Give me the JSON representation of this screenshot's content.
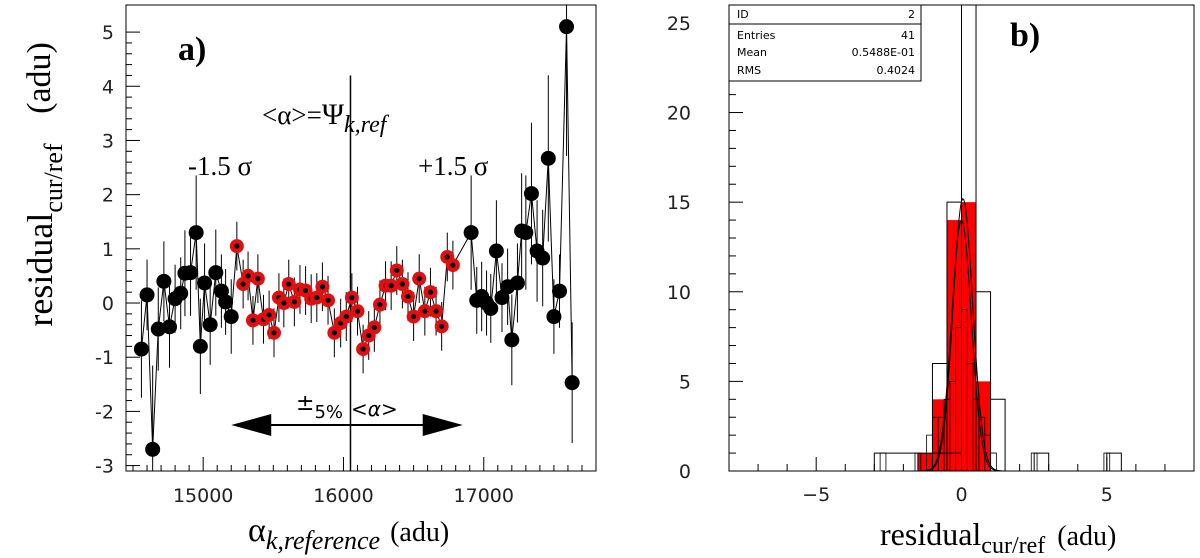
{
  "chart_data": [
    {
      "type": "scatter",
      "panel_label": "a)",
      "xlabel_main": "α",
      "xlabel_sub": "k,reference",
      "xlabel_unit": "(adu)",
      "ylabel_main": "residual",
      "ylabel_sub": "cur/ref",
      "ylabel_unit": "(adu)",
      "xlim": [
        14450,
        17800
      ],
      "ylim": [
        -3.1,
        5.5
      ],
      "xticks": [
        15000,
        16000,
        17000
      ],
      "yticks": [
        -3,
        -2,
        -1,
        0,
        1,
        2,
        3,
        4,
        5
      ],
      "vline_x": 16050,
      "annot_center_prefix": "<α>=",
      "annot_center_psi": "Ψ",
      "annot_center_sub": "k,ref",
      "annot_left": "-1.5 σ",
      "annot_right": "+1.5 σ",
      "arrow_range": [
        15200,
        16850
      ],
      "arrow_pm": "±",
      "arrow_label_pct": "5%",
      "arrow_label_alpha": "<α>",
      "outer_points": {
        "color": "#000000",
        "points": [
          [
            14560,
            -0.85
          ],
          [
            14600,
            0.15
          ],
          [
            14640,
            -2.7
          ],
          [
            14680,
            -0.48
          ],
          [
            14720,
            0.4
          ],
          [
            14760,
            -0.44
          ],
          [
            14800,
            0.08
          ],
          [
            14840,
            0.18
          ],
          [
            14870,
            0.55
          ],
          [
            14910,
            0.56
          ],
          [
            14950,
            1.3
          ],
          [
            14980,
            -0.8
          ],
          [
            15010,
            0.37
          ],
          [
            15050,
            -0.4
          ],
          [
            15090,
            0.56
          ],
          [
            15130,
            0.22
          ],
          [
            15160,
            0.02
          ],
          [
            15200,
            -0.25
          ],
          [
            16910,
            1.3
          ],
          [
            16950,
            0.05
          ],
          [
            16985,
            0.12
          ],
          [
            17020,
            0.0
          ],
          [
            17050,
            -0.1
          ],
          [
            17090,
            0.96
          ],
          [
            17130,
            0.1
          ],
          [
            17170,
            0.3
          ],
          [
            17200,
            -0.68
          ],
          [
            17240,
            0.37
          ],
          [
            17270,
            1.33
          ],
          [
            17300,
            1.3
          ],
          [
            17340,
            2.02
          ],
          [
            17380,
            0.96
          ],
          [
            17420,
            0.83
          ],
          [
            17460,
            2.67
          ],
          [
            17500,
            -0.25
          ],
          [
            17540,
            0.22
          ],
          [
            17590,
            5.1
          ],
          [
            17630,
            -1.47
          ]
        ]
      },
      "inner_points": {
        "color": "#e01010",
        "points": [
          [
            15240,
            1.05
          ],
          [
            15285,
            0.35
          ],
          [
            15320,
            0.5
          ],
          [
            15355,
            -0.32
          ],
          [
            15390,
            0.45
          ],
          [
            15430,
            -0.3
          ],
          [
            15470,
            -0.22
          ],
          [
            15505,
            -0.55
          ],
          [
            15540,
            0.1
          ],
          [
            15575,
            0.0
          ],
          [
            15610,
            0.35
          ],
          [
            15650,
            0.02
          ],
          [
            15690,
            0.25
          ],
          [
            15730,
            0.23
          ],
          [
            15770,
            0.08
          ],
          [
            15810,
            0.1
          ],
          [
            15850,
            0.3
          ],
          [
            15890,
            0.05
          ],
          [
            15935,
            -0.55
          ],
          [
            15980,
            -0.37
          ],
          [
            16020,
            -0.25
          ],
          [
            16060,
            0.1
          ],
          [
            16100,
            -0.15
          ],
          [
            16140,
            -0.85
          ],
          [
            16180,
            -0.6
          ],
          [
            16220,
            -0.45
          ],
          [
            16260,
            -0.03
          ],
          [
            16300,
            0.32
          ],
          [
            16340,
            0.32
          ],
          [
            16380,
            0.6
          ],
          [
            16420,
            0.35
          ],
          [
            16460,
            0.12
          ],
          [
            16500,
            -0.25
          ],
          [
            16540,
            0.45
          ],
          [
            16580,
            -0.15
          ],
          [
            16620,
            0.2
          ],
          [
            16660,
            -0.15
          ],
          [
            16700,
            -0.43
          ],
          [
            16740,
            0.85
          ],
          [
            16780,
            0.7
          ]
        ]
      }
    },
    {
      "type": "histogram",
      "panel_label": "b)",
      "xlabel_main": "residual",
      "xlabel_sub": "cur/ref",
      "xlabel_unit": "(adu)",
      "xlim": [
        -8,
        8
      ],
      "ylim": [
        0,
        26
      ],
      "xticks": [
        -5,
        0,
        5
      ],
      "yticks": [
        0,
        5,
        10,
        15,
        20,
        25
      ],
      "bin_width": 0.5,
      "total_histogram": {
        "outline": "#000000",
        "bins": [
          [
            -3,
            0,
            1
          ],
          [
            -1.5,
            -1,
            1
          ],
          [
            -1,
            -0.5,
            6
          ],
          [
            -0.5,
            0,
            15
          ],
          [
            0,
            0.5,
            26
          ],
          [
            0.5,
            1,
            10
          ],
          [
            1,
            1.5,
            4
          ],
          [
            2.5,
            3,
            1
          ],
          [
            5,
            5.5,
            1
          ]
        ]
      },
      "inner_histogram": {
        "fill": "#ff0000",
        "bins": [
          [
            -1.5,
            -1,
            1
          ],
          [
            -1,
            -0.5,
            4
          ],
          [
            -0.5,
            0,
            14
          ],
          [
            0,
            0.5,
            15
          ],
          [
            0.5,
            1,
            5
          ]
        ]
      },
      "fine_histogram": {
        "bin_width": 0.2,
        "bins": [
          [
            -2.8,
            -2.6,
            1
          ],
          [
            -1.6,
            -1.4,
            1
          ],
          [
            -1.2,
            -1.0,
            2
          ],
          [
            -1.0,
            -0.8,
            3
          ],
          [
            -0.8,
            -0.6,
            3
          ],
          [
            -0.6,
            -0.4,
            4
          ],
          [
            -0.4,
            -0.2,
            5
          ],
          [
            -0.2,
            0.0,
            8
          ],
          [
            0.0,
            0.2,
            9
          ],
          [
            0.2,
            0.4,
            6
          ],
          [
            0.4,
            0.6,
            4
          ],
          [
            0.6,
            0.8,
            3
          ],
          [
            0.8,
            1.0,
            2
          ],
          [
            1.0,
            1.2,
            1
          ],
          [
            2.4,
            2.6,
            1
          ],
          [
            4.9,
            5.1,
            1
          ]
        ]
      },
      "gauss_fits": [
        {
          "amp": 15.2,
          "mean": 0.05,
          "sigma": 0.34
        },
        {
          "amp": 14.0,
          "mean": 0.0,
          "sigma": 0.34
        }
      ],
      "stats_box": {
        "rows": [
          {
            "label": "ID",
            "value": "2"
          },
          {
            "label": "Entries",
            "value": "41"
          },
          {
            "label": "Mean",
            "value": "0.5488E-01"
          },
          {
            "label": "RMS",
            "value": "0.4024"
          }
        ]
      }
    }
  ]
}
